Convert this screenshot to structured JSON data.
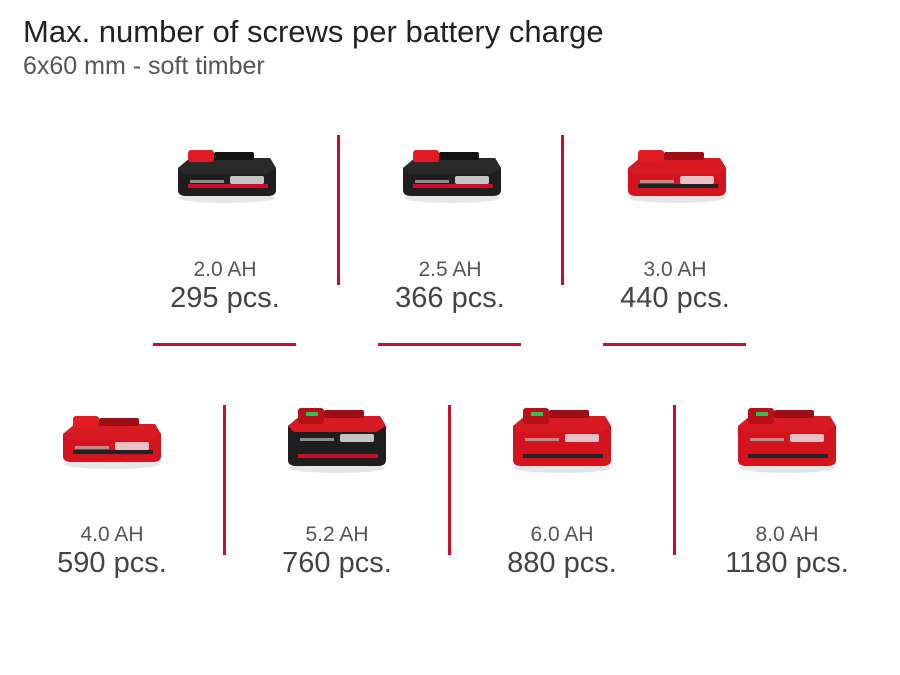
{
  "header": {
    "title": "Max. number of screws per battery charge",
    "subtitle": "6x60 mm - soft timber"
  },
  "accent_color": "#c8102e",
  "batteries": [
    {
      "capacity": "2.0 AH",
      "count": "295 pcs.",
      "style": "black-slim"
    },
    {
      "capacity": "2.5 AH",
      "count": "366 pcs.",
      "style": "black-slim"
    },
    {
      "capacity": "3.0 AH",
      "count": "440 pcs.",
      "style": "red-slim"
    },
    {
      "capacity": "4.0 AH",
      "count": "590 pcs.",
      "style": "red-slim"
    },
    {
      "capacity": "5.2 AH",
      "count": "760 pcs.",
      "style": "black-large"
    },
    {
      "capacity": "6.0 AH",
      "count": "880 pcs.",
      "style": "red-large"
    },
    {
      "capacity": "8.0 AH",
      "count": "1180 pcs.",
      "style": "red-large"
    }
  ]
}
